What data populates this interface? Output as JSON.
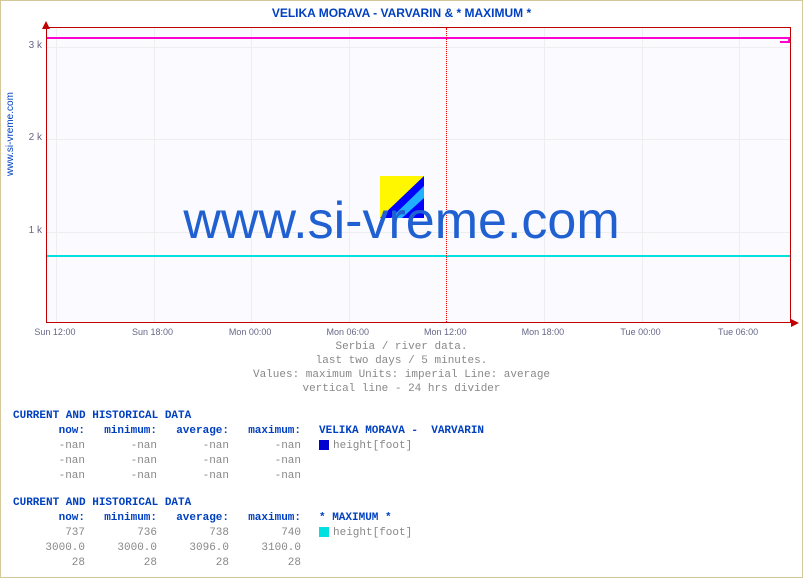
{
  "title": "VELIKA MORAVA -  VARVARIN & * MAXIMUM *",
  "yaxis_label": "www.si-vreme.com",
  "watermark": "www.si-vreme.com",
  "chart": {
    "type": "line",
    "ylim": [
      0,
      3200
    ],
    "yticks": [
      1000,
      2000,
      3000
    ],
    "ytick_labels": [
      "1 k",
      "2 k",
      "3 k"
    ],
    "xtick_labels": [
      "Sun 12:00",
      "Sun 18:00",
      "Mon 00:00",
      "Mon 06:00",
      "Mon 12:00",
      "Mon 18:00",
      "Tue 00:00",
      "Tue 06:00"
    ],
    "xtick_positions_pct": [
      1.2,
      14.3,
      27.4,
      40.5,
      53.6,
      66.7,
      79.8,
      92.9
    ],
    "vline_24h_pct": 53.6,
    "series": [
      {
        "name": "VELIKA MORAVA - VARVARIN",
        "color": "#00e0e0",
        "y_value": 737
      },
      {
        "name": "* MAXIMUM *",
        "color": "#ff00d0",
        "y_value": 3096
      }
    ],
    "background_color": "#fafaff",
    "grid_color": "#eeeeee",
    "axis_color": "#c00000"
  },
  "captions": [
    "Serbia / river data.",
    "last two days / 5 minutes.",
    "Values: maximum  Units: imperial  Line: average",
    "vertical line - 24 hrs  divider"
  ],
  "tables": [
    {
      "heading": "CURRENT AND HISTORICAL DATA",
      "columns": [
        "now:",
        "minimum:",
        "average:",
        "maximum:"
      ],
      "legend_label": "VELIKA MORAVA -  VARVARIN",
      "legend_color": "#0000d0",
      "legend_metric": "height[foot]",
      "rows": [
        [
          "-nan",
          "-nan",
          "-nan",
          "-nan"
        ],
        [
          "-nan",
          "-nan",
          "-nan",
          "-nan"
        ],
        [
          "-nan",
          "-nan",
          "-nan",
          "-nan"
        ]
      ]
    },
    {
      "heading": "CURRENT AND HISTORICAL DATA",
      "columns": [
        "now:",
        "minimum:",
        "average:",
        "maximum:"
      ],
      "legend_label": "* MAXIMUM *",
      "legend_color": "#00e0e0",
      "legend_metric": "height[foot]",
      "rows": [
        [
          "737",
          "736",
          "738",
          "740"
        ],
        [
          "3000.0",
          "3000.0",
          "3096.0",
          "3100.0"
        ],
        [
          "28",
          "28",
          "28",
          "28"
        ]
      ]
    }
  ]
}
